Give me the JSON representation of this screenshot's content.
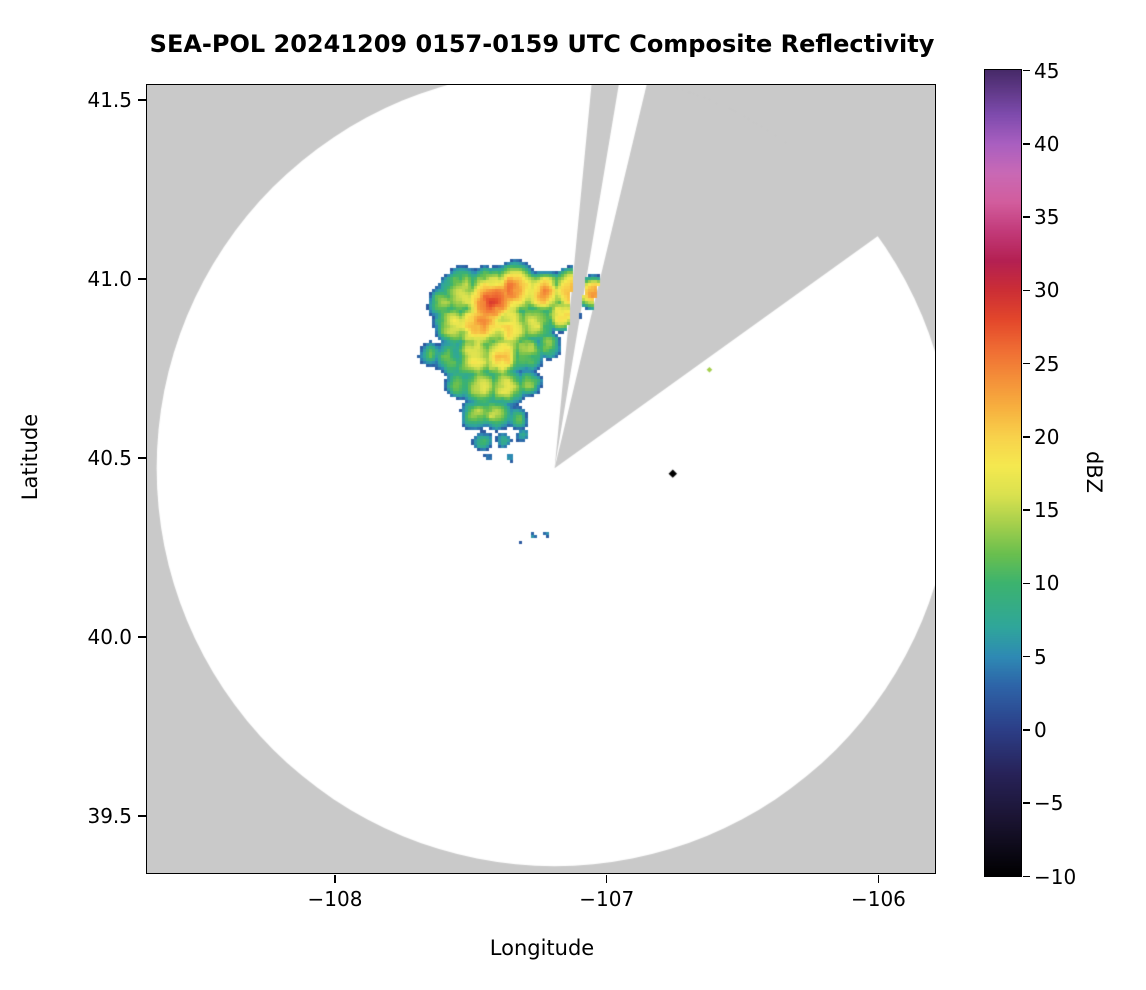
{
  "figure": {
    "title": "SEA-POL 20241209 0157-0159 UTC Composite Reflectivity",
    "xlabel": "Longitude",
    "ylabel": "Latitude",
    "colorbar_label": "dBZ"
  },
  "chart_data": {
    "type": "heatmap",
    "title": "SEA-POL 20241209 0157-0159 UTC Composite Reflectivity",
    "xlabel": "Longitude",
    "ylabel": "Latitude",
    "xlim": [
      -108.69,
      -105.79
    ],
    "ylim": [
      39.34,
      41.54
    ],
    "xticks": [
      {
        "v": -108,
        "label": "−108"
      },
      {
        "v": -107,
        "label": "−107"
      },
      {
        "v": -106,
        "label": "−106"
      }
    ],
    "yticks": [
      {
        "v": 39.5,
        "label": "39.5"
      },
      {
        "v": 40.0,
        "label": "40.0"
      },
      {
        "v": 40.5,
        "label": "40.5"
      },
      {
        "v": 41.0,
        "label": "41.0"
      },
      {
        "v": 41.5,
        "label": "41.5"
      }
    ],
    "grid": false,
    "background_color": "#ffffff",
    "nodata_color": "#c9c9c9",
    "radar": {
      "center_lon": -107.19,
      "center_lat": 40.47,
      "range_deg_lat": 1.111,
      "blocked_sectors_azimuth_deg": [
        [
          5.5,
          9.5
        ],
        [
          13.5,
          54.3
        ]
      ]
    },
    "colorbar": {
      "label": "dBZ",
      "min": -10,
      "max": 45,
      "ticks": [
        {
          "v": -10,
          "label": "−10"
        },
        {
          "v": -5,
          "label": "−5"
        },
        {
          "v": 0,
          "label": "0"
        },
        {
          "v": 5,
          "label": "5"
        },
        {
          "v": 10,
          "label": "10"
        },
        {
          "v": 15,
          "label": "15"
        },
        {
          "v": 20,
          "label": "20"
        },
        {
          "v": 25,
          "label": "25"
        },
        {
          "v": 30,
          "label": "30"
        },
        {
          "v": 35,
          "label": "35"
        },
        {
          "v": 40,
          "label": "40"
        },
        {
          "v": 45,
          "label": "45"
        }
      ]
    },
    "colormap_stops": [
      [
        -10,
        "#000000"
      ],
      [
        -6,
        "#1b1433"
      ],
      [
        -3,
        "#272258"
      ],
      [
        0,
        "#2c3e87"
      ],
      [
        3,
        "#2d64a8"
      ],
      [
        5,
        "#2e8ab4"
      ],
      [
        7,
        "#2fa69b"
      ],
      [
        10,
        "#3cb36f"
      ],
      [
        12,
        "#6abf4e"
      ],
      [
        14,
        "#a4cf4c"
      ],
      [
        16,
        "#d9e14f"
      ],
      [
        18,
        "#f5e94f"
      ],
      [
        20,
        "#f8d24b"
      ],
      [
        22,
        "#f7b03f"
      ],
      [
        24,
        "#f48f39"
      ],
      [
        26,
        "#ef6c33"
      ],
      [
        28,
        "#e3472b"
      ],
      [
        30,
        "#cc2e35"
      ],
      [
        32,
        "#b42052"
      ],
      [
        34,
        "#c23a79"
      ],
      [
        36,
        "#d25d9d"
      ],
      [
        38,
        "#c969b5"
      ],
      [
        40,
        "#a95fc0"
      ],
      [
        42,
        "#7e4bad"
      ],
      [
        45,
        "#472a69"
      ]
    ],
    "echo_falloff": 14,
    "echo_threshold_dbz": 2,
    "echo_cells": [
      [
        -107.6,
        40.93,
        0.05,
        13
      ],
      [
        -107.52,
        40.96,
        0.065,
        18
      ],
      [
        -107.43,
        40.94,
        0.07,
        26
      ],
      [
        -107.33,
        40.97,
        0.065,
        23
      ],
      [
        -107.23,
        40.96,
        0.06,
        21
      ],
      [
        -107.13,
        40.97,
        0.05,
        25
      ],
      [
        -107.05,
        40.96,
        0.04,
        24
      ],
      [
        -107.56,
        40.87,
        0.06,
        16
      ],
      [
        -107.46,
        40.87,
        0.07,
        22
      ],
      [
        -107.36,
        40.87,
        0.065,
        19
      ],
      [
        -107.26,
        40.88,
        0.06,
        16
      ],
      [
        -107.16,
        40.9,
        0.05,
        18
      ],
      [
        -107.65,
        40.79,
        0.045,
        10
      ],
      [
        -107.57,
        40.78,
        0.055,
        13
      ],
      [
        -107.48,
        40.78,
        0.065,
        19
      ],
      [
        -107.39,
        40.78,
        0.06,
        21
      ],
      [
        -107.29,
        40.79,
        0.055,
        15
      ],
      [
        -107.21,
        40.81,
        0.045,
        13
      ],
      [
        -107.54,
        40.7,
        0.05,
        11
      ],
      [
        -107.46,
        40.7,
        0.06,
        17
      ],
      [
        -107.37,
        40.7,
        0.055,
        18
      ],
      [
        -107.29,
        40.71,
        0.045,
        12
      ],
      [
        -107.48,
        40.62,
        0.05,
        13
      ],
      [
        -107.4,
        40.62,
        0.05,
        15
      ],
      [
        -107.33,
        40.61,
        0.04,
        10
      ],
      [
        -107.45,
        40.55,
        0.04,
        8
      ],
      [
        -107.38,
        40.55,
        0.035,
        7
      ],
      [
        -107.43,
        40.5,
        0.03,
        4
      ],
      [
        -107.35,
        40.5,
        0.025,
        5
      ],
      [
        -107.31,
        40.56,
        0.03,
        6
      ],
      [
        -107.27,
        40.28,
        0.015,
        6
      ],
      [
        -107.22,
        40.285,
        0.012,
        5
      ],
      [
        -107.32,
        40.265,
        0.01,
        4
      ]
    ],
    "point_echoes": [
      {
        "lon": -106.755,
        "lat": 40.455,
        "dbz": -10,
        "size": 6
      },
      {
        "lon": -106.62,
        "lat": 40.745,
        "dbz": 14,
        "size": 4
      }
    ]
  }
}
